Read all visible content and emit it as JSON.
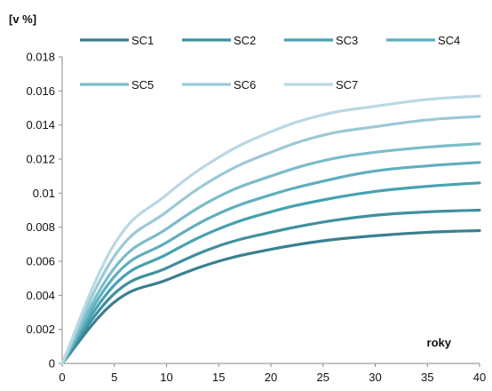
{
  "chart_data": {
    "type": "line",
    "ylabel": "[v %]",
    "xlabel": "roky",
    "xlim": [
      0,
      40
    ],
    "ylim": [
      0,
      0.018
    ],
    "x_ticks": [
      "0",
      "5",
      "10",
      "15",
      "20",
      "25",
      "30",
      "35",
      "40"
    ],
    "y_ticks": [
      "0",
      "0.002",
      "0.004",
      "0.006",
      "0.008",
      "0.01",
      "0.012",
      "0.014",
      "0.016",
      "0.018"
    ],
    "grid": "none",
    "legend_position": "top",
    "x": [
      0,
      5,
      10,
      15,
      20,
      25,
      30,
      35,
      40
    ],
    "series": [
      {
        "name": "SC1",
        "color": "#3a7f8f",
        "values": [
          0,
          0.0036,
          0.0049,
          0.006,
          0.0067,
          0.0072,
          0.0075,
          0.0077,
          0.0078
        ]
      },
      {
        "name": "SC2",
        "color": "#40909e",
        "values": [
          0,
          0.0041,
          0.0056,
          0.0069,
          0.0077,
          0.0083,
          0.0087,
          0.0089,
          0.009
        ]
      },
      {
        "name": "SC3",
        "color": "#46a2b0",
        "values": [
          0,
          0.0046,
          0.0064,
          0.0079,
          0.0089,
          0.0096,
          0.0101,
          0.0104,
          0.0106
        ]
      },
      {
        "name": "SC4",
        "color": "#5eaec0",
        "values": [
          0,
          0.0051,
          0.0071,
          0.0088,
          0.0099,
          0.0107,
          0.0113,
          0.0116,
          0.0118
        ]
      },
      {
        "name": "SC5",
        "color": "#7bbccb",
        "values": [
          0,
          0.0056,
          0.0079,
          0.0098,
          0.011,
          0.0119,
          0.0124,
          0.0127,
          0.0129
        ]
      },
      {
        "name": "SC6",
        "color": "#9ac9d6",
        "values": [
          0,
          0.0063,
          0.0089,
          0.011,
          0.0124,
          0.0134,
          0.0139,
          0.0143,
          0.0145
        ]
      },
      {
        "name": "SC7",
        "color": "#b9d8e3",
        "values": [
          0,
          0.007,
          0.0099,
          0.0121,
          0.0136,
          0.0146,
          0.0151,
          0.0155,
          0.0157
        ]
      }
    ]
  }
}
